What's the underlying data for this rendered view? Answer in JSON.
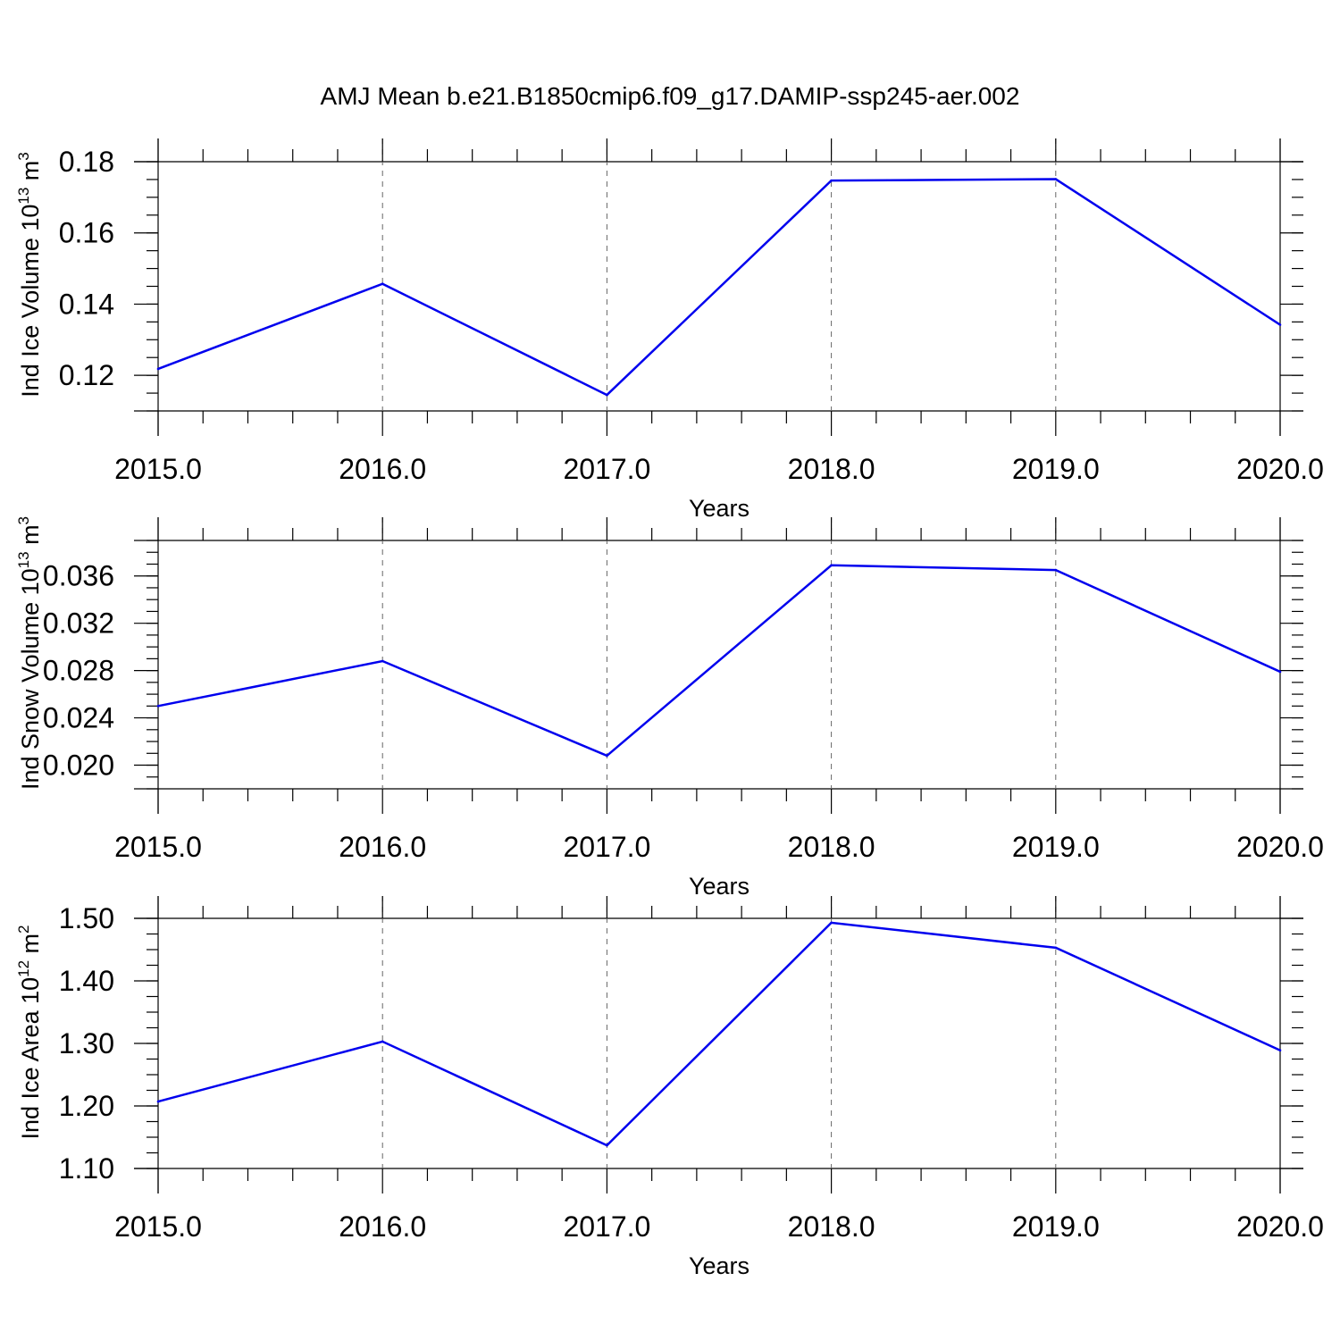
{
  "title": "AMJ Mean b.e21.B1850cmip6.f09_g17.DAMIP-ssp245-aer.002",
  "colors": {
    "line": "#0000ee",
    "grid": "#666666",
    "axis": "#000000"
  },
  "chart_data": [
    {
      "type": "line",
      "xlabel": "Years",
      "ylabel": {
        "text": "Ind Ice Volume 10",
        "exponent": "13",
        "unit": " m",
        "unit_exponent": "3"
      },
      "xlim": [
        2015,
        2020
      ],
      "ylim": [
        0.11,
        0.18
      ],
      "x_ticks": [
        2015,
        2016,
        2017,
        2018,
        2019,
        2020
      ],
      "x_tick_labels": [
        "2015.0",
        "2016.0",
        "2017.0",
        "2018.0",
        "2019.0",
        "2020.0"
      ],
      "y_ticks": [
        0.12,
        0.14,
        0.16,
        0.18
      ],
      "y_tick_labels": [
        "0.12",
        "0.14",
        "0.16",
        "0.18"
      ],
      "y_minor_step": 0.005,
      "top_frame": 0.18,
      "grid": "x-major-dashed",
      "x": [
        2015,
        2016,
        2017,
        2018,
        2019,
        2020
      ],
      "values": [
        0.1218,
        0.1457,
        0.1145,
        0.1747,
        0.1751,
        0.1342
      ]
    },
    {
      "type": "line",
      "xlabel": "Years",
      "ylabel": {
        "text": "Ind Snow Volume 10",
        "exponent": "13",
        "unit": " m",
        "unit_exponent": "3"
      },
      "xlim": [
        2015,
        2020
      ],
      "ylim": [
        0.018,
        0.039
      ],
      "x_ticks": [
        2015,
        2016,
        2017,
        2018,
        2019,
        2020
      ],
      "x_tick_labels": [
        "2015.0",
        "2016.0",
        "2017.0",
        "2018.0",
        "2019.0",
        "2020.0"
      ],
      "y_ticks": [
        0.02,
        0.024,
        0.028,
        0.032,
        0.036
      ],
      "y_tick_labels": [
        "0.020",
        "0.024",
        "0.028",
        "0.032",
        "0.036"
      ],
      "y_minor_step": 0.001,
      "top_frame": 0.039,
      "grid": "x-major-dashed",
      "x": [
        2015,
        2016,
        2017,
        2018,
        2019,
        2020
      ],
      "values": [
        0.025,
        0.0288,
        0.0208,
        0.0369,
        0.0365,
        0.0279
      ]
    },
    {
      "type": "line",
      "xlabel": "Years",
      "ylabel": {
        "text": "Ind Ice Area 10",
        "exponent": "12",
        "unit": " m",
        "unit_exponent": "2"
      },
      "xlim": [
        2015,
        2020
      ],
      "ylim": [
        1.1,
        1.5
      ],
      "x_ticks": [
        2015,
        2016,
        2017,
        2018,
        2019,
        2020
      ],
      "x_tick_labels": [
        "2015.0",
        "2016.0",
        "2017.0",
        "2018.0",
        "2019.0",
        "2020.0"
      ],
      "y_ticks": [
        1.1,
        1.2,
        1.3,
        1.4,
        1.5
      ],
      "y_tick_labels": [
        "1.10",
        "1.20",
        "1.30",
        "1.40",
        "1.50"
      ],
      "y_minor_step": 0.025,
      "top_frame": 1.5,
      "grid": "x-major-dashed",
      "x": [
        2015,
        2016,
        2017,
        2018,
        2019,
        2020
      ],
      "values": [
        1.207,
        1.303,
        1.137,
        1.493,
        1.453,
        1.289
      ]
    }
  ]
}
